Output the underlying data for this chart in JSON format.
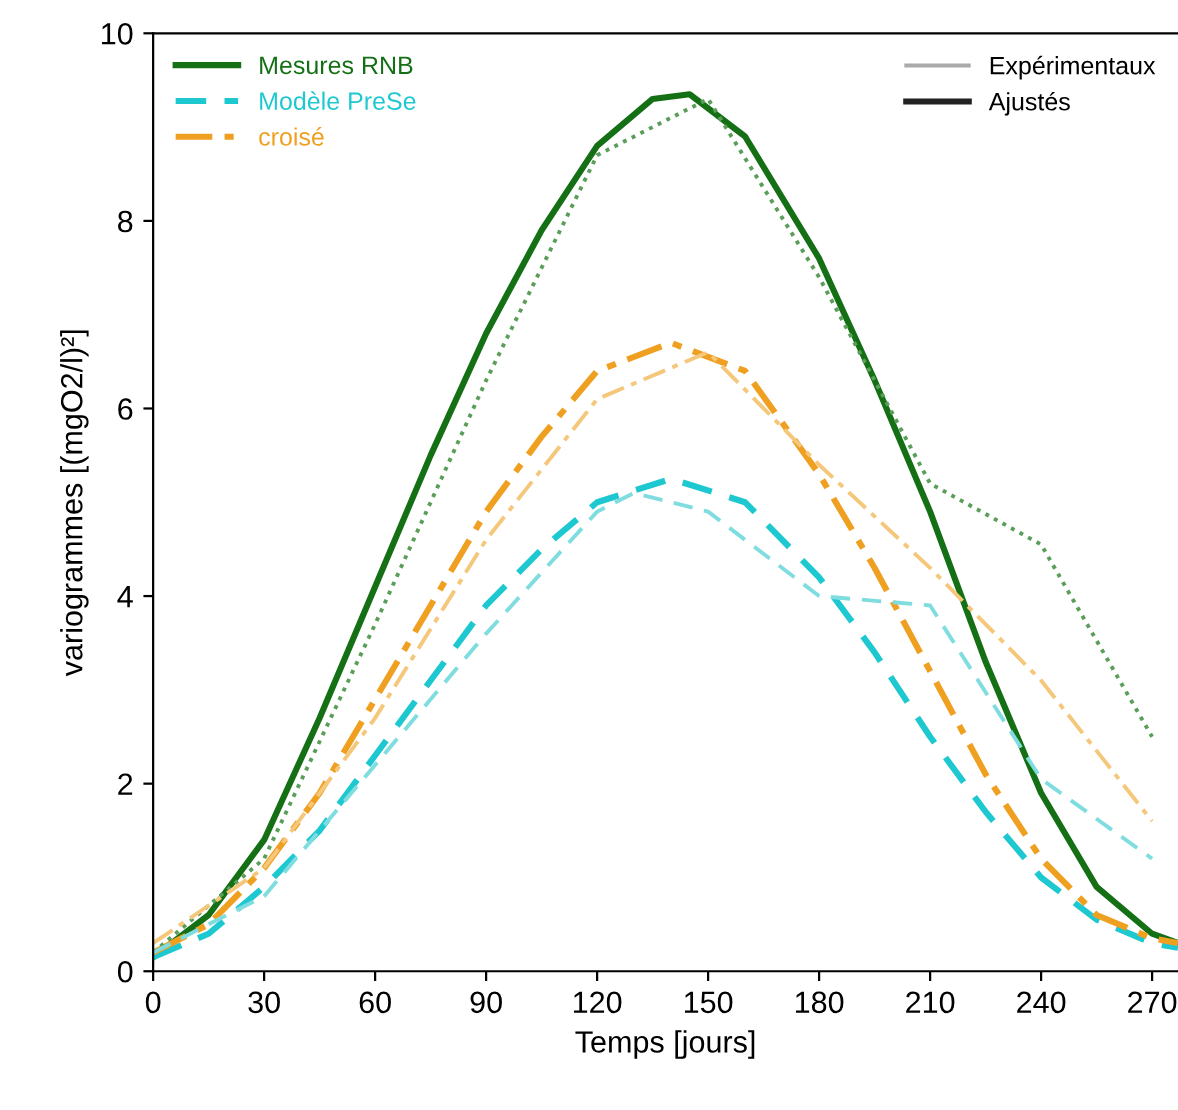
{
  "chart_data": {
    "type": "line",
    "xlabel": "Temps [jours]",
    "ylabel": "variogrammes [(mgO2/l)²]",
    "xlim": [
      0,
      277
    ],
    "ylim": [
      0,
      10
    ],
    "xticks": [
      0,
      30,
      60,
      90,
      120,
      150,
      180,
      210,
      240,
      270
    ],
    "yticks": [
      0,
      2,
      4,
      6,
      8,
      10
    ],
    "grid": false,
    "legend": "top left",
    "marker": "none",
    "annotations": [
      "Expérimentaux",
      "Ajustés"
    ],
    "series": [
      {
        "name": "Mesures RNB",
        "color": "#157015",
        "line_style": "solid",
        "x": [
          0,
          15,
          30,
          45,
          60,
          75,
          90,
          105,
          120,
          135,
          145,
          160,
          180,
          195,
          210,
          225,
          240,
          255,
          270,
          277
        ],
        "values": [
          0.15,
          0.6,
          1.4,
          2.7,
          4.1,
          5.5,
          6.8,
          7.9,
          8.8,
          9.3,
          9.35,
          8.9,
          7.6,
          6.3,
          4.9,
          3.3,
          1.9,
          0.9,
          0.4,
          0.3
        ]
      },
      {
        "name": "Modèle PreSe",
        "color": "#1ec8d0",
        "line_style": "dashed",
        "x": [
          0,
          15,
          30,
          45,
          60,
          75,
          90,
          105,
          120,
          140,
          160,
          180,
          195,
          210,
          225,
          240,
          255,
          270,
          277
        ],
        "values": [
          0.15,
          0.4,
          0.9,
          1.5,
          2.3,
          3.1,
          3.9,
          4.5,
          5.0,
          5.25,
          5.0,
          4.2,
          3.4,
          2.5,
          1.7,
          1.0,
          0.55,
          0.3,
          0.25
        ]
      },
      {
        "name": "croisé",
        "color": "#f0a020",
        "line_style": "dashdot",
        "x": [
          0,
          15,
          30,
          45,
          60,
          75,
          90,
          105,
          120,
          140,
          160,
          180,
          195,
          210,
          225,
          240,
          255,
          270,
          277
        ],
        "values": [
          0.2,
          0.5,
          1.1,
          1.9,
          2.9,
          3.9,
          4.9,
          5.7,
          6.4,
          6.7,
          6.4,
          5.3,
          4.3,
          3.2,
          2.1,
          1.2,
          0.6,
          0.35,
          0.3
        ]
      },
      {
        "color": "#5a9e5a",
        "line_style": "dotted",
        "x": [
          0,
          30,
          60,
          90,
          120,
          150,
          180,
          210,
          240,
          270
        ],
        "values": [
          0.2,
          1.2,
          3.7,
          6.3,
          8.7,
          9.3,
          7.4,
          5.2,
          4.55,
          2.5
        ]
      },
      {
        "color": "#7fdde0",
        "line_style": "dashed",
        "x": [
          0,
          30,
          60,
          90,
          120,
          130,
          150,
          180,
          210,
          240,
          270
        ],
        "values": [
          0.2,
          0.8,
          2.2,
          3.6,
          4.9,
          5.1,
          4.9,
          4.0,
          3.9,
          2.05,
          1.2
        ]
      },
      {
        "color": "#f5c77a",
        "line_style": "dashdot",
        "x": [
          0,
          30,
          60,
          90,
          120,
          150,
          180,
          210,
          240,
          270
        ],
        "values": [
          0.3,
          1.1,
          2.7,
          4.6,
          6.1,
          6.6,
          5.4,
          4.3,
          3.1,
          1.6
        ]
      }
    ]
  }
}
